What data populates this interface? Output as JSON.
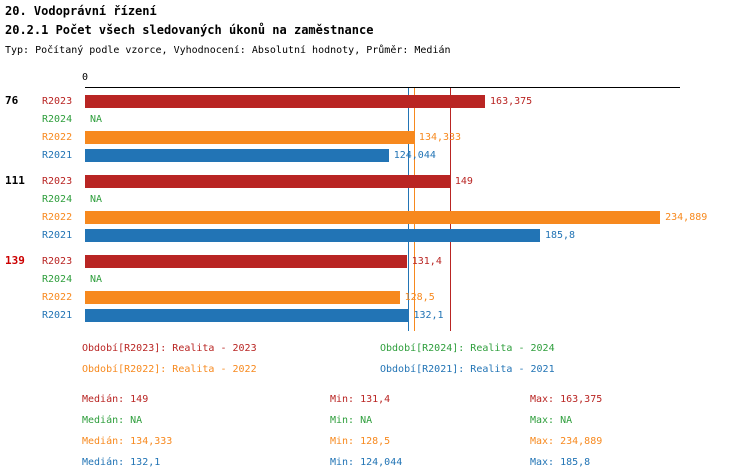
{
  "header": {
    "title": "20. Vodoprávní řízení",
    "subtitle": "20.2.1 Počet všech sledovaných úkonů na zaměstnance",
    "meta": "Typ: Počítaný podle vzorce, Vyhodnocení: Absolutní hodnoty, Průměr: Medián"
  },
  "colors": {
    "r2023": "#b92523",
    "r2024": "#2e9e3c",
    "r2022": "#f7891e",
    "r2021": "#2274b5",
    "highlight_group": "#cc0000",
    "axis": "#000000"
  },
  "chart_data": {
    "type": "bar",
    "orientation": "horizontal",
    "x_axis": {
      "origin_label": "0",
      "xlim": [
        0,
        243
      ],
      "grid": false
    },
    "series": [
      {
        "id": "R2023",
        "name": "Realita - 2023",
        "color": "#b92523"
      },
      {
        "id": "R2024",
        "name": "Realita - 2024",
        "color": "#2e9e3c"
      },
      {
        "id": "R2022",
        "name": "Realita - 2022",
        "color": "#f7891e"
      },
      {
        "id": "R2021",
        "name": "Realita - 2021",
        "color": "#2274b5"
      }
    ],
    "groups": [
      {
        "label": "76",
        "label_color": "#000000",
        "bars": [
          {
            "series": "R2023",
            "value": 163.375,
            "display": "163,375"
          },
          {
            "series": "R2024",
            "value": null,
            "display": "NA"
          },
          {
            "series": "R2022",
            "value": 134.333,
            "display": "134,333"
          },
          {
            "series": "R2021",
            "value": 124.044,
            "display": "124,044"
          }
        ]
      },
      {
        "label": "111",
        "label_color": "#000000",
        "bars": [
          {
            "series": "R2023",
            "value": 149,
            "display": "149"
          },
          {
            "series": "R2024",
            "value": null,
            "display": "NA"
          },
          {
            "series": "R2022",
            "value": 234.889,
            "display": "234,889"
          },
          {
            "series": "R2021",
            "value": 185.8,
            "display": "185,8"
          }
        ]
      },
      {
        "label": "139",
        "label_color": "#cc0000",
        "bars": [
          {
            "series": "R2023",
            "value": 131.4,
            "display": "131,4"
          },
          {
            "series": "R2024",
            "value": null,
            "display": "NA"
          },
          {
            "series": "R2022",
            "value": 128.5,
            "display": "128,5"
          },
          {
            "series": "R2021",
            "value": 132.1,
            "display": "132,1"
          }
        ]
      }
    ],
    "median_lines": [
      {
        "series": "R2023",
        "value": 149,
        "color": "#b92523"
      },
      {
        "series": "R2022",
        "value": 134.333,
        "color": "#f7891e"
      },
      {
        "series": "R2021",
        "value": 132.1,
        "color": "#2274b5"
      }
    ]
  },
  "legend": {
    "items": [
      {
        "label": "Období[R2023]: Realita - 2023",
        "color": "#b92523"
      },
      {
        "label": "Období[R2024]: Realita - 2024",
        "color": "#2e9e3c"
      },
      {
        "label": "Období[R2022]: Realita - 2022",
        "color": "#f7891e"
      },
      {
        "label": "Období[R2021]: Realita - 2021",
        "color": "#2274b5"
      }
    ]
  },
  "stats": {
    "rows": [
      {
        "color": "#b92523",
        "median": "Medián: 149",
        "min": "Min: 131,4",
        "max": "Max: 163,375"
      },
      {
        "color": "#2e9e3c",
        "median": "Medián: NA",
        "min": "Min: NA",
        "max": "Max: NA"
      },
      {
        "color": "#f7891e",
        "median": "Medián: 134,333",
        "min": "Min: 128,5",
        "max": "Max: 234,889"
      },
      {
        "color": "#2274b5",
        "median": "Medián: 132,1",
        "min": "Min: 124,044",
        "max": "Max: 185,8"
      }
    ]
  }
}
